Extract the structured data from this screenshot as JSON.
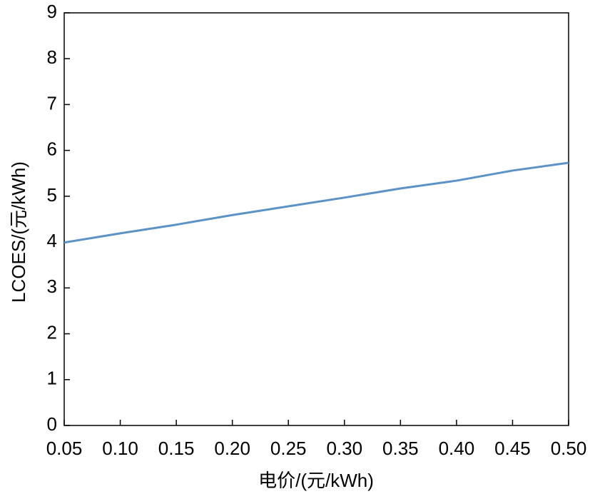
{
  "chart_data": {
    "type": "line",
    "x_label": "电价/(元/kWh)",
    "y_label": "LCOES/(元/kWh)",
    "x": [
      0.05,
      0.1,
      0.15,
      0.2,
      0.25,
      0.3,
      0.35,
      0.4,
      0.45,
      0.5
    ],
    "series": [
      {
        "color": "#5b93c7",
        "values": [
          3.99,
          4.19,
          4.38,
          4.59,
          4.78,
          4.97,
          5.17,
          5.34,
          5.56,
          5.73
        ]
      }
    ],
    "xlim": [
      0.05,
      0.5
    ],
    "xticks": [
      0.05,
      {
        "value": 0.1,
        "label": "0.10"
      },
      0.15,
      {
        "value": 0.2,
        "label": "0.20"
      },
      0.25,
      {
        "value": 0.3,
        "label": "0.30"
      },
      0.35,
      {
        "value": 0.4,
        "label": "0.40"
      },
      0.45,
      {
        "value": 0.5,
        "label": "0.50"
      }
    ],
    "ylim": [
      0,
      9
    ],
    "yticks": [
      0,
      1,
      2,
      3,
      4,
      5,
      6,
      7,
      8,
      9
    ],
    "grid": false
  }
}
